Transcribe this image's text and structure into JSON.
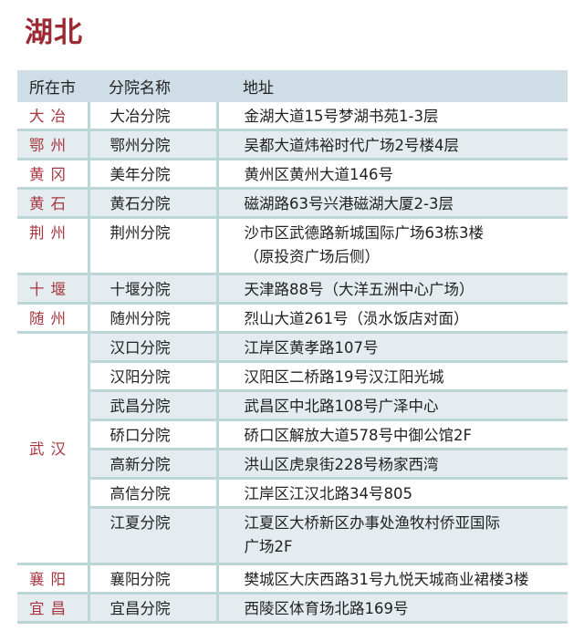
{
  "title": "湖北",
  "headers": [
    "所在市",
    "分院名称",
    "地址"
  ],
  "rows": [
    {
      "city": "大冶",
      "branch": "大冶分院",
      "address": [
        "金湖大道15号梦湖书苑1-3层"
      ]
    },
    {
      "city": "鄂州",
      "branch": "鄂州分院",
      "address": [
        "吴都大道炜裕时代广场2号楼4层"
      ]
    },
    {
      "city": "黄冈",
      "branch": "美年分院",
      "address": [
        "黄州区黄州大道146号"
      ]
    },
    {
      "city": "黄石",
      "branch": "黄石分院",
      "address": [
        "磁湖路63号兴港磁湖大厦2-3层"
      ]
    },
    {
      "city": "荆州",
      "branch": "荆州分院",
      "address": [
        "沙市区武德路新城国际广场63栋3楼",
        "（原投资广场后侧）"
      ]
    },
    {
      "city": "十堰",
      "branch": "十堰分院",
      "address": [
        "天津路88号（大洋五洲中心广场）"
      ]
    },
    {
      "city": "随州",
      "branch": "随州分院",
      "address": [
        "烈山大道261号（涢水饭店对面）"
      ]
    },
    {
      "city": "武汉",
      "branch": "汉口分院",
      "address": [
        "江岸区黄孝路107号"
      ]
    },
    {
      "city": "",
      "branch": "汉阳分院",
      "address": [
        "汉阳区二桥路19号汉江阳光城"
      ]
    },
    {
      "city": "",
      "branch": "武昌分院",
      "address": [
        "武昌区中北路108号广泽中心"
      ]
    },
    {
      "city": "",
      "branch": "硚口分院",
      "address": [
        "硚口区解放大道578号中御公馆2F"
      ]
    },
    {
      "city": "",
      "branch": "高新分院",
      "address": [
        "洪山区虎泉街228号杨家西湾"
      ]
    },
    {
      "city": "",
      "branch": "高信分院",
      "address": [
        "江岸区江汉北路34号805"
      ]
    },
    {
      "city": "",
      "branch": "江夏分院",
      "address": [
        "江夏区大桥新区办事处渔牧村侨亚国际",
        "广场2F"
      ]
    },
    {
      "city": "襄阳",
      "branch": "襄阳分院",
      "address": [
        "樊城区大庆西路31号九悦天城商业裙楼3楼"
      ]
    },
    {
      "city": "宜昌",
      "branch": "宜昌分院",
      "address": [
        "西陵区体育场北路169号"
      ]
    }
  ],
  "colors": {
    "title": "#9b2a35",
    "city_text": "#a8353e",
    "header_bg": "#cfdde6",
    "stripe_bg": "#e4ecf0",
    "rule": "#bcd6d7"
  }
}
